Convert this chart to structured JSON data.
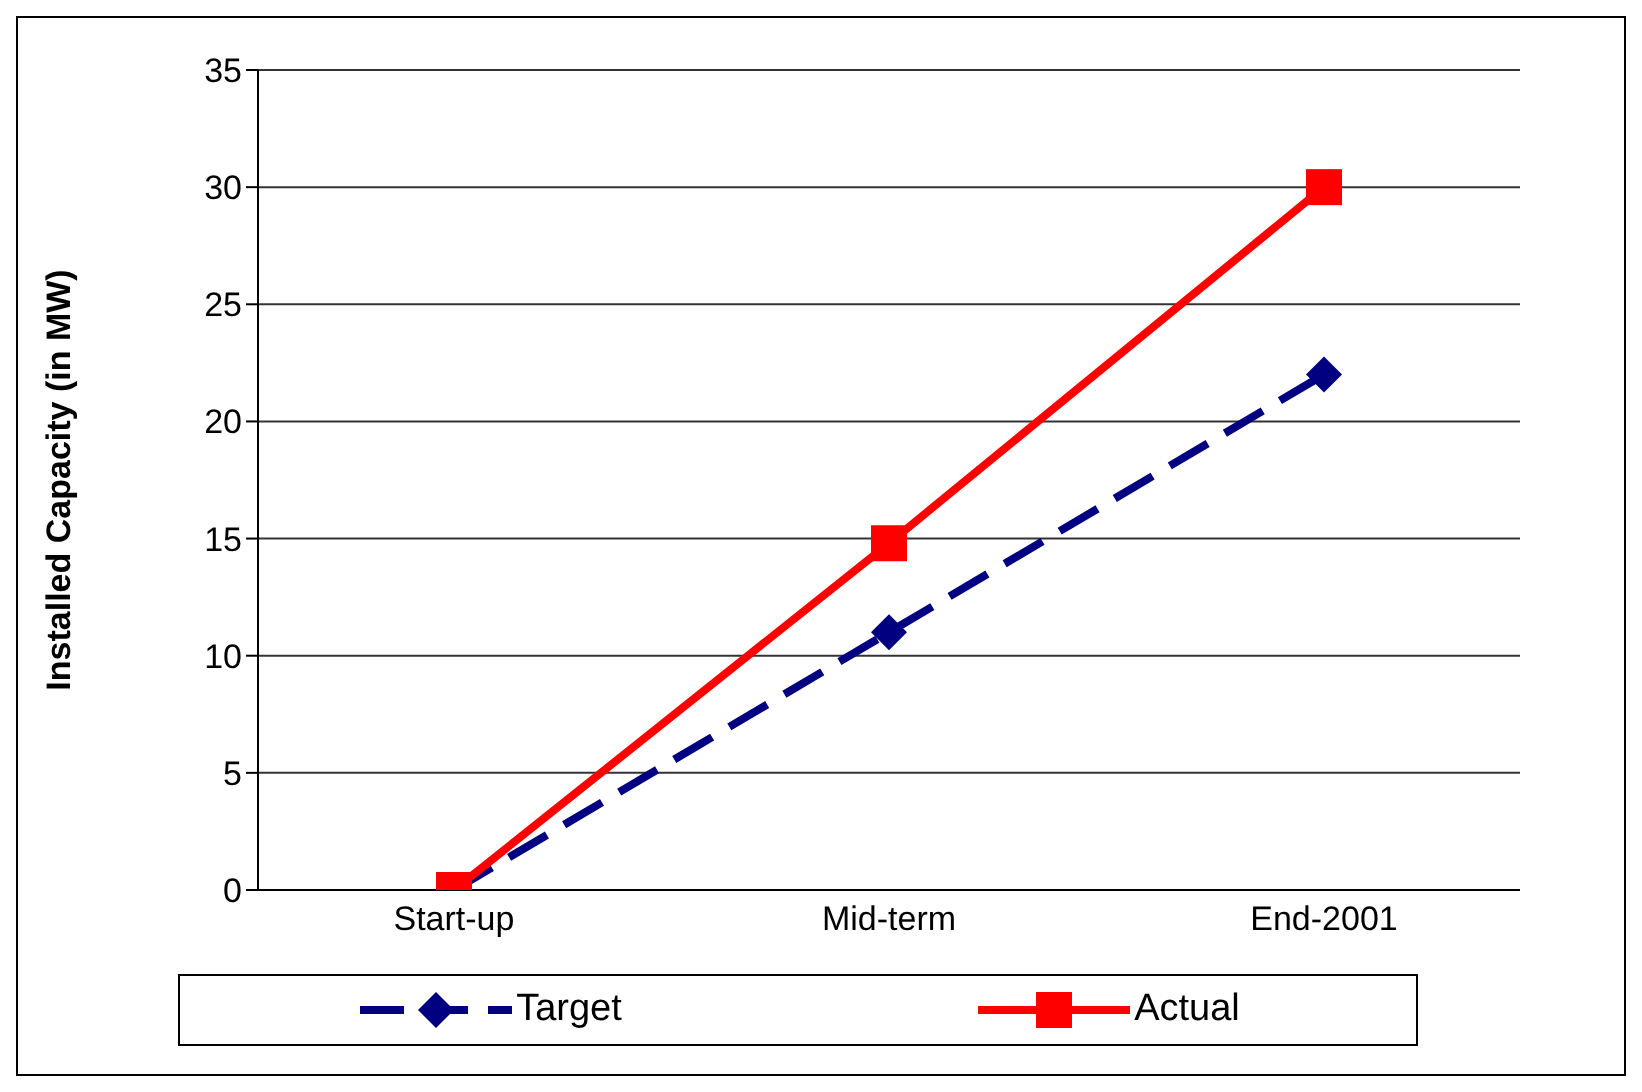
{
  "chart_data": {
    "type": "line",
    "ylabel": "Installed Capacity (in MW)",
    "categories": [
      "Start-up",
      "Mid-term",
      "End-2001"
    ],
    "series": [
      {
        "name": "Target",
        "color": "#000080",
        "values": [
          0,
          11,
          22
        ],
        "marker": "diamond",
        "line_style": "dashed"
      },
      {
        "name": "Actual",
        "color": "#ff0000",
        "values": [
          0,
          14.8,
          30
        ],
        "marker": "square",
        "line_style": "solid"
      }
    ],
    "ylim": [
      0,
      35
    ],
    "yticks": [
      0,
      5,
      10,
      15,
      20,
      25,
      30,
      35
    ],
    "grid": "y",
    "legend": "bottom"
  }
}
